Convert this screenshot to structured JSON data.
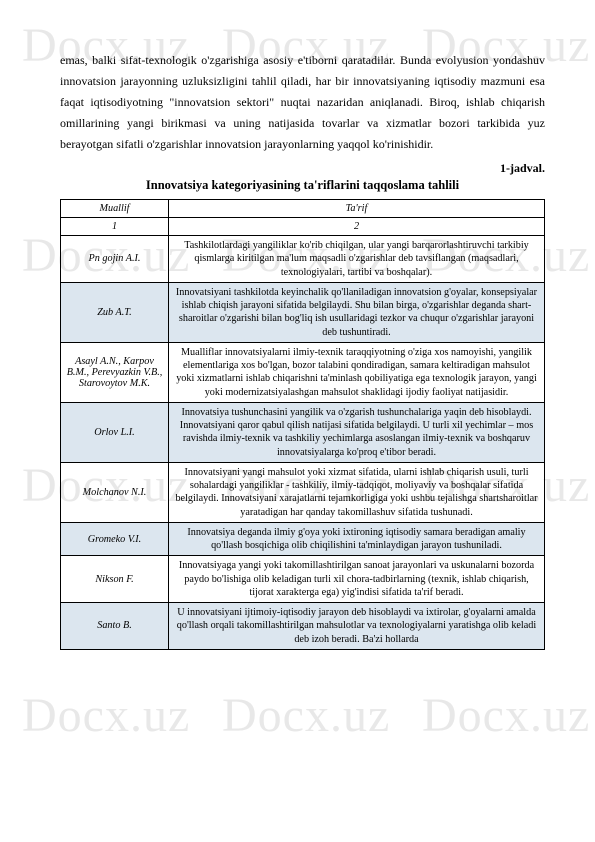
{
  "watermark_text": "Docx.uz",
  "paragraph": "emas, balki sifat-texnologik o'zgarishiga asosiy e'tiborni qaratadilar. Bunda evolyusion yondashuv innovatsion jarayonning uzluksizligini tahlil qiladi, har bir innovatsiyaning iqtisodiy mazmuni esa faqat iqtisodiyotning \"innovatsion sektori\" nuqtai nazaridan aniqlanadi. Biroq, ishlab chiqarish omillarining yangi birikmasi va uning natijasida tovarlar va xizmatlar bozori tarkibida yuz berayotgan sifatli o'zgarishlar innovatsion jarayonlarning yaqqol ko'rinishidir.",
  "table_label": "1-jadval.",
  "table_title": "Innovatsiya kategoriyasining ta'riflarini taqqoslama tahlili",
  "headers": {
    "col1": "Muallif",
    "col2": "Ta'rif"
  },
  "subheaders": {
    "col1": "1",
    "col2": "2"
  },
  "rows": [
    {
      "author": "Pn gojin A.I.",
      "desc": "Tashkilotlardagi yangiliklar ko'rib chiqilgan, ular yangi barqarorlashtiruvchi tarkibiy qismlarga  kiritilgan ma'lum maqsadli o'zgarishlar deb tavsiflangan (maqsadlari, texnologiyalari, tartibi va boshqalar).",
      "shaded": false
    },
    {
      "author": "Zub A.T.",
      "desc": "Innovatsiyani tashkilotda keyinchalik qo'llaniladigan innovatsion g'oyalar, konsepsiyalar ishlab chiqish jarayoni sifatida belgilaydi. Shu bilan birga, o'zgarishlar deganda shart-sharoitlar o'zgarishi bilan bog'liq ish usullaridagi tezkor va chuqur o'zgarishlar jarayoni deb tushuntiradi.",
      "shaded": true
    },
    {
      "author": "Asayl A.N., Karpov B.M., Perevyazkin V.B., Starovoytov M.K.",
      "desc": "Mualliflar innovatsiyalarni ilmiy-texnik taraqqiyotning o'ziga xos namoyishi, yangilik elementlariga xos bo'lgan, bozor talabini qondiradigan, samara keltiradigan mahsulot yoki xizmatlarni ishlab chiqarishni ta'minlash qobiliyatiga ega texnologik jarayon,  yangi yoki modernizatsiyalashgan mahsulot shaklidagi ijodiy faoliyat natijasidir.",
      "shaded": false
    },
    {
      "author": "Orlov L.I.",
      "desc": "Innovatsiya tushunchasini yangilik va o'zgarish tushunchalariga yaqin deb hisoblaydi. Innovatsiyani qaror qabul qilish natijasi sifatida belgilaydi. U turli xil yechimlar – mos ravishda ilmiy-texnik va tashkiliy yechimlarga asoslangan ilmiy-texnik va boshqaruv innovatsiyalarga ko'proq e'tibor beradi.",
      "shaded": true
    },
    {
      "author": "Molchanov N.I.",
      "desc": "Innovatsiyani yangi mahsulot yoki xizmat sifatida, ularni ishlab chiqarish usuli, turli sohalardagi yangiliklar - tashkiliy, ilmiy-tadqiqot, moliyaviy va boshqalar sifatida belgilaydi. Innovatsiyani xarajatlarni tejamkorligiga yoki ushbu tejalishga shartsharoitlar yaratadigan har qanday takomillashuv sifatida tushunadi.",
      "shaded": false
    },
    {
      "author": "Gromeko V.I.",
      "desc": "Innovatsiya deganda ilmiy g'oya yoki ixtironing iqtisodiy samara beradigan amaliy qo'llash bosqichiga olib chiqilishini ta'minlaydigan jarayon tushuniladi.",
      "shaded": true
    },
    {
      "author": "Nikson F.",
      "desc": "Innovatsiyaga yangi yoki takomillashtirilgan sanoat jarayonlari va uskunalarni bozorda paydo bo'lishiga olib keladigan turli xil chora-tadbirlarning (texnik, ishlab chiqarish, tijorat xarakterga ega) yig'indisi sifatida ta'rif beradi.",
      "shaded": false
    },
    {
      "author": "Santo B.",
      "desc": "U innovatsiyani ijtimoiy-iqtisodiy jarayon deb hisoblaydi va ixtirolar, g'oyalarni amalda qo'llash orqali takomillashtirilgan mahsulotlar va texnologiyalarni yaratishga olib keladi deb izoh beradi. Ba'zi hollarda",
      "shaded": true
    }
  ]
}
